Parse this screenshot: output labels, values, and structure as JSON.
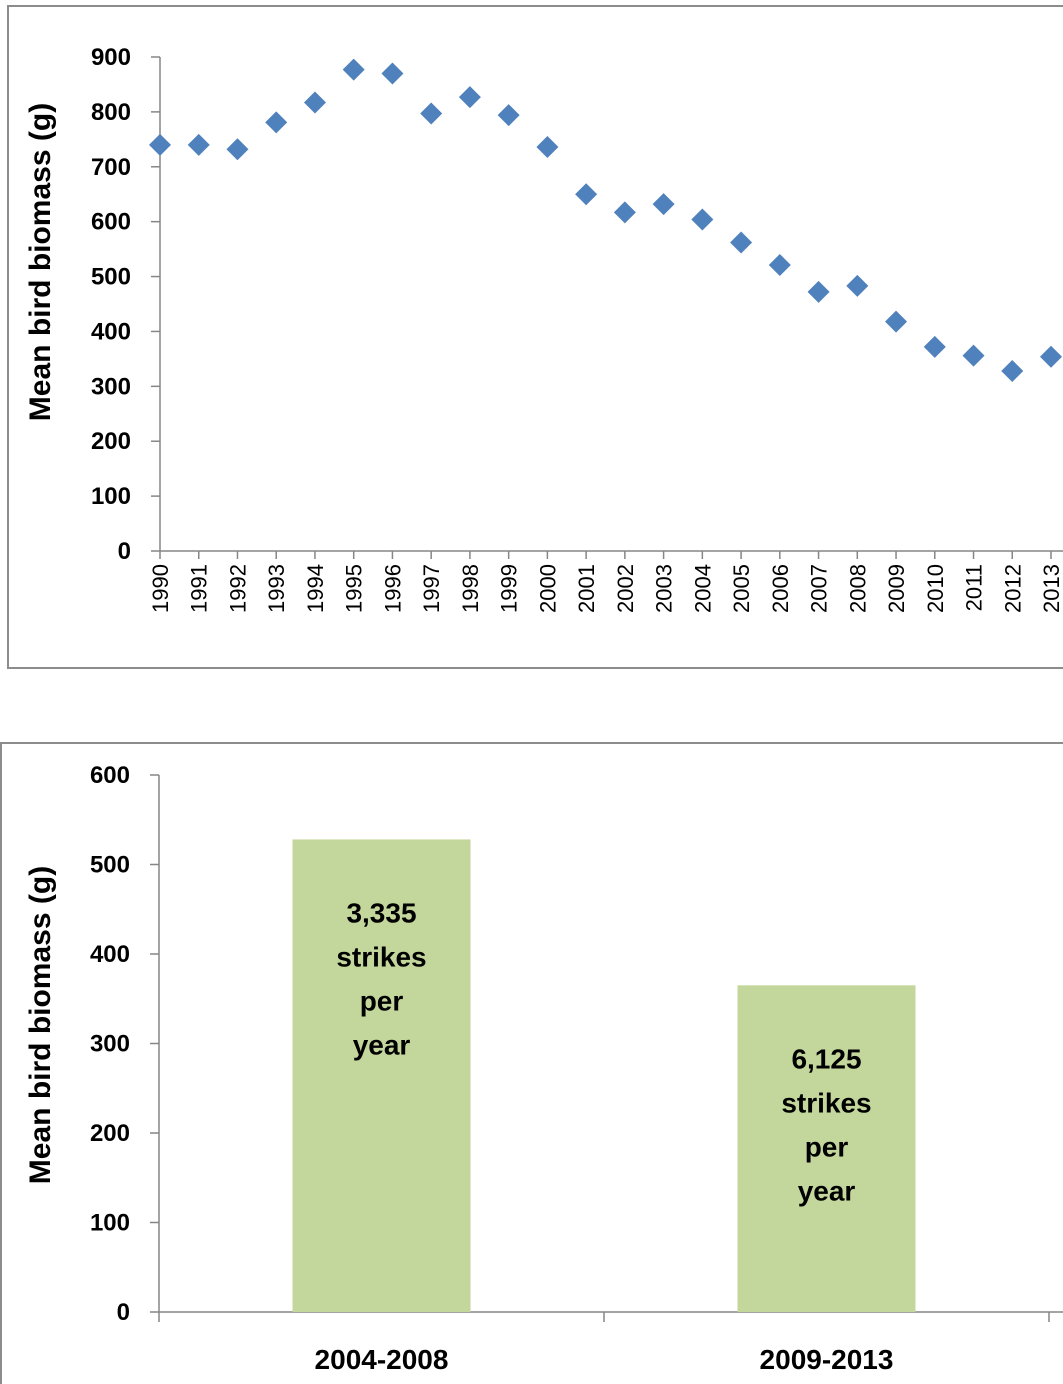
{
  "chart_data": [
    {
      "type": "scatter",
      "marker": "diamond",
      "marker_color": "#4f81bd",
      "xlabel": "",
      "ylabel": "Mean bird biomass (g)",
      "ylim": [
        0,
        900
      ],
      "yticks": [
        0,
        100,
        200,
        300,
        400,
        500,
        600,
        700,
        800,
        900
      ],
      "yticks_text": [
        "0",
        "100",
        "200",
        "300",
        "400",
        "500",
        "600",
        "700",
        "800",
        "900"
      ],
      "grid": false,
      "x": [
        "1990",
        "1991",
        "1992",
        "1993",
        "1994",
        "1995",
        "1996",
        "1997",
        "1998",
        "1999",
        "2000",
        "2001",
        "2002",
        "2003",
        "2004",
        "2005",
        "2006",
        "2007",
        "2008",
        "2009",
        "2010",
        "2011",
        "2012",
        "2013"
      ],
      "series": [
        {
          "values": [
            740,
            740,
            732,
            781,
            817,
            877,
            870,
            797,
            827,
            794,
            736,
            650,
            617,
            632,
            604,
            562,
            521,
            472,
            483,
            418,
            372,
            356,
            328,
            354
          ]
        }
      ]
    },
    {
      "type": "bar",
      "bar_color": "#c3d69b",
      "xlabel": "",
      "ylabel": "Mean bird biomass (g)",
      "ylim": [
        0,
        600
      ],
      "yticks": [
        0,
        100,
        200,
        300,
        400,
        500,
        600
      ],
      "yticks_text": [
        "0",
        "100",
        "200",
        "300",
        "400",
        "500",
        "600"
      ],
      "grid": false,
      "categories": [
        "2004-2008",
        "2009-2013"
      ],
      "values": [
        528,
        365
      ],
      "data_labels": [
        [
          "3,335",
          "strikes",
          "per",
          "year"
        ],
        [
          "6,125",
          "strikes",
          "per",
          "year"
        ]
      ]
    }
  ]
}
